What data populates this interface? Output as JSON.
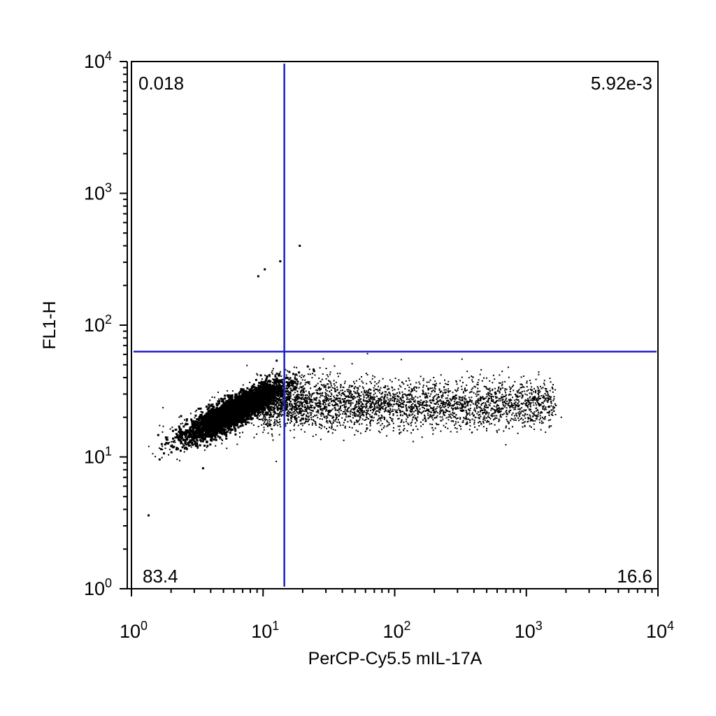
{
  "chart_data": {
    "type": "scatter",
    "title": "",
    "xlabel": "PerCP-Cy5.5 mIL-17A",
    "ylabel": "FL1-H",
    "xscale": "log",
    "yscale": "log",
    "xlim": [
      1,
      10000
    ],
    "ylim": [
      1,
      10000
    ],
    "grid": false,
    "x_ticks": [
      {
        "value": 1,
        "base": "10",
        "exp": "0"
      },
      {
        "value": 10,
        "base": "10",
        "exp": "1"
      },
      {
        "value": 100,
        "base": "10",
        "exp": "2"
      },
      {
        "value": 1000,
        "base": "10",
        "exp": "3"
      },
      {
        "value": 10000,
        "base": "10",
        "exp": "4"
      }
    ],
    "y_ticks": [
      {
        "value": 1,
        "base": "10",
        "exp": "0"
      },
      {
        "value": 10,
        "base": "10",
        "exp": "1"
      },
      {
        "value": 100,
        "base": "10",
        "exp": "2"
      },
      {
        "value": 1000,
        "base": "10",
        "exp": "3"
      },
      {
        "value": 10000,
        "base": "10",
        "exp": "4"
      }
    ],
    "quadrant_gate": {
      "x": 14.5,
      "y": 63,
      "color": "#1f1fc8"
    },
    "quadrant_labels": {
      "upper_left": "0.018",
      "upper_right": "5.92e-3",
      "lower_left": "83.4",
      "lower_right": "16.6"
    },
    "populations": [
      {
        "label": "main cluster",
        "x_center": 6.0,
        "y_center": 22,
        "x_spread_log": 0.17,
        "y_spread_log": 0.1,
        "correlation": 0.85,
        "density": "very high"
      },
      {
        "label": "IL-17A positive tail",
        "x_range": [
          10,
          1600
        ],
        "y_center": 25,
        "y_spread_log": 0.09,
        "density": "moderate"
      }
    ],
    "outliers": [
      {
        "x": 9.2,
        "y": 235
      },
      {
        "x": 10.3,
        "y": 265
      },
      {
        "x": 13.5,
        "y": 305
      },
      {
        "x": 19,
        "y": 400
      },
      {
        "x": 1.35,
        "y": 3.6
      },
      {
        "x": 1.7,
        "y": 12.5
      },
      {
        "x": 3.5,
        "y": 8.2
      }
    ],
    "point_color": "#000000",
    "axis_color": "#000000"
  }
}
